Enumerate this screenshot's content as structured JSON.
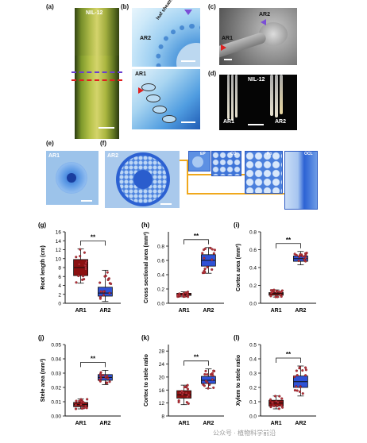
{
  "panels": {
    "a": {
      "label": "(a)",
      "title": "NIL-12"
    },
    "b": {
      "label": "(b)",
      "ar2": "AR2",
      "ar1": "AR1",
      "sheath": "leaf sheath"
    },
    "c": {
      "label": "(c)",
      "ar2": "AR2",
      "ar1": "AR1"
    },
    "d": {
      "label": "(d)",
      "title": "NIL-12",
      "ar1": "AR1",
      "ar2": "AR2"
    },
    "e": {
      "label": "(e)",
      "tag": "AR1"
    },
    "f": {
      "label": "(f)",
      "tag": "AR2",
      "insets": [
        "EP",
        "CO",
        "Po",
        "OCL"
      ]
    }
  },
  "watermark": "公众号 · 植物科学前沿",
  "colors": {
    "ar1_box": "#8b1010",
    "ar2_box": "#2f52d6",
    "point": "#b8323a"
  },
  "chart_data": [
    {
      "id": "g",
      "label": "(g)",
      "type": "box",
      "ylabel": "Root length (cm)",
      "categories": [
        "AR1",
        "AR2"
      ],
      "ylim": [
        0,
        16
      ],
      "yticks": [
        0,
        2,
        4,
        6,
        8,
        10,
        12,
        14,
        16
      ],
      "tick_labels": [
        "0",
        "2",
        "4",
        "6",
        "8",
        "10",
        "12",
        "14",
        "16"
      ],
      "sig": "**",
      "boxes": [
        {
          "name": "AR1",
          "min": 4.5,
          "q1": 6.2,
          "median": 8.0,
          "q3": 9.8,
          "max": 12.2
        },
        {
          "name": "AR2",
          "min": 0.4,
          "q1": 1.6,
          "median": 2.3,
          "q3": 3.6,
          "max": 7.4
        }
      ]
    },
    {
      "id": "h",
      "label": "(h)",
      "type": "box",
      "ylabel": "Cross sectional area (mm²)",
      "categories": [
        "AR1",
        "AR2"
      ],
      "ylim": [
        0,
        1.0
      ],
      "yticks": [
        0,
        0.2,
        0.4,
        0.6,
        0.8
      ],
      "tick_labels": [
        "0.0",
        "0.2",
        "0.4",
        "0.6",
        "0.8"
      ],
      "sig": "**",
      "boxes": [
        {
          "name": "AR1",
          "min": 0.09,
          "q1": 0.11,
          "median": 0.12,
          "q3": 0.14,
          "max": 0.16
        },
        {
          "name": "AR2",
          "min": 0.42,
          "q1": 0.52,
          "median": 0.6,
          "q3": 0.68,
          "max": 0.78
        }
      ]
    },
    {
      "id": "i",
      "label": "(i)",
      "type": "box",
      "ylabel": "Cortex area (mm²)",
      "categories": [
        "AR1",
        "AR2"
      ],
      "ylim": [
        0,
        0.8
      ],
      "yticks": [
        0,
        0.2,
        0.4,
        0.6,
        0.8
      ],
      "tick_labels": [
        "0.0",
        "0.2",
        "0.4",
        "0.6",
        "0.8"
      ],
      "sig": "**",
      "boxes": [
        {
          "name": "AR1",
          "min": 0.07,
          "q1": 0.09,
          "median": 0.11,
          "q3": 0.12,
          "max": 0.15
        },
        {
          "name": "AR2",
          "min": 0.43,
          "q1": 0.47,
          "median": 0.5,
          "q3": 0.53,
          "max": 0.58
        }
      ]
    },
    {
      "id": "j",
      "label": "(j)",
      "type": "box",
      "ylabel": "Stele area (mm²)",
      "categories": [
        "AR1",
        "AR2"
      ],
      "ylim": [
        0,
        0.05
      ],
      "yticks": [
        0,
        0.01,
        0.02,
        0.03,
        0.04,
        0.05
      ],
      "tick_labels": [
        "0.00",
        "0.01",
        "0.02",
        "0.03",
        "0.04",
        "0.05"
      ],
      "sig": "**",
      "boxes": [
        {
          "name": "AR1",
          "min": 0.005,
          "q1": 0.0065,
          "median": 0.008,
          "q3": 0.0095,
          "max": 0.012
        },
        {
          "name": "AR2",
          "min": 0.022,
          "q1": 0.025,
          "median": 0.027,
          "q3": 0.029,
          "max": 0.032
        }
      ]
    },
    {
      "id": "k",
      "label": "(k)",
      "type": "box",
      "ylabel": "Cortex to stele ratio",
      "categories": [
        "AR1",
        "AR2"
      ],
      "ylim": [
        8,
        30
      ],
      "yticks": [
        8,
        12,
        16,
        20,
        24,
        28
      ],
      "tick_labels": [
        "8",
        "12",
        "16",
        "20",
        "24",
        "28"
      ],
      "sig": "**",
      "boxes": [
        {
          "name": "AR1",
          "min": 11.5,
          "q1": 13.5,
          "median": 14.5,
          "q3": 15.8,
          "max": 17.5
        },
        {
          "name": "AR2",
          "min": 16.5,
          "q1": 18.0,
          "median": 19.0,
          "q3": 20.2,
          "max": 22.5
        }
      ]
    },
    {
      "id": "l",
      "label": "(l)",
      "type": "box",
      "ylabel": "Xylem to stele ratio",
      "categories": [
        "AR1",
        "AR2"
      ],
      "ylim": [
        0,
        0.5
      ],
      "yticks": [
        0,
        0.1,
        0.2,
        0.3,
        0.4,
        0.5
      ],
      "tick_labels": [
        "0.0",
        "0.1",
        "0.2",
        "0.3",
        "0.4",
        "0.5"
      ],
      "sig": "**",
      "boxes": [
        {
          "name": "AR1",
          "min": 0.05,
          "q1": 0.07,
          "median": 0.09,
          "q3": 0.11,
          "max": 0.14
        },
        {
          "name": "AR2",
          "min": 0.14,
          "q1": 0.2,
          "median": 0.24,
          "q3": 0.28,
          "max": 0.35
        }
      ]
    }
  ]
}
